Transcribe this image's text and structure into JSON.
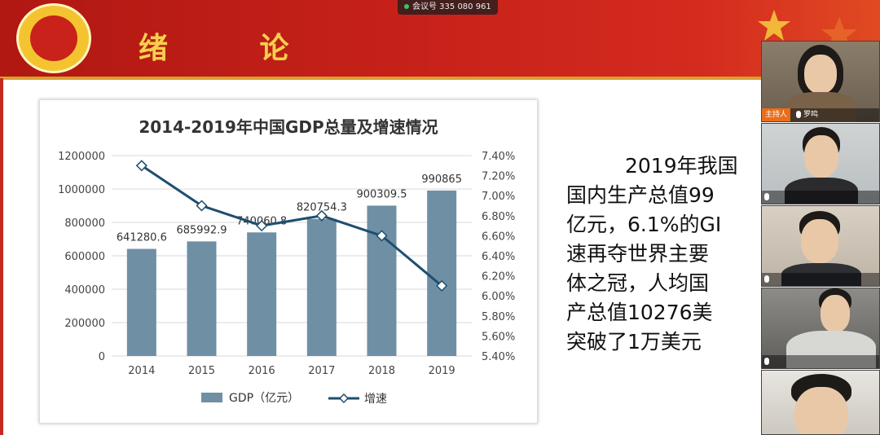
{
  "slide": {
    "title": "绪 论",
    "text_lines": [
      "2019年我国",
      "国内生产总值99",
      "亿元，6.1%的GI",
      "速再夺世界主要",
      "体之冠，人均国",
      "产总值10276美",
      "突破了1万美元"
    ]
  },
  "meeting": {
    "id_label": "会议号 335 080 961"
  },
  "participants": {
    "host_badge": "主持人",
    "host_name": "罗鸣"
  },
  "colors": {
    "bar": "#6f8fa5",
    "line": "#1e4e6e",
    "banner": "#c8221a",
    "title_gold": "#f6d04d"
  },
  "chart_data": {
    "type": "bar",
    "title": "2014-2019年中国GDP总量及增速情况",
    "categories": [
      "2014",
      "2015",
      "2016",
      "2017",
      "2018",
      "2019"
    ],
    "series": [
      {
        "name": "GDP（亿元）",
        "type": "bar",
        "axis": "left",
        "values": [
          641280.6,
          685992.9,
          740060.8,
          820754.3,
          900309.5,
          990865
        ],
        "labels": [
          "641280.6",
          "685992.9",
          "740060.8",
          "820754.3",
          "900309.5",
          "990865"
        ]
      },
      {
        "name": "增速",
        "type": "line",
        "axis": "right",
        "values": [
          7.3,
          6.9,
          6.7,
          6.8,
          6.6,
          6.1
        ]
      }
    ],
    "ylim": [
      0,
      1200000
    ],
    "yticks": [
      "0",
      "200000",
      "400000",
      "600000",
      "800000",
      "1000000",
      "1200000"
    ],
    "y2lim": [
      5.4,
      7.4
    ],
    "y2ticks": [
      "5.40%",
      "5.60%",
      "5.80%",
      "6.00%",
      "6.20%",
      "6.40%",
      "6.60%",
      "6.80%",
      "7.00%",
      "7.20%",
      "7.40%"
    ],
    "grid": true,
    "legend": "bottom"
  }
}
